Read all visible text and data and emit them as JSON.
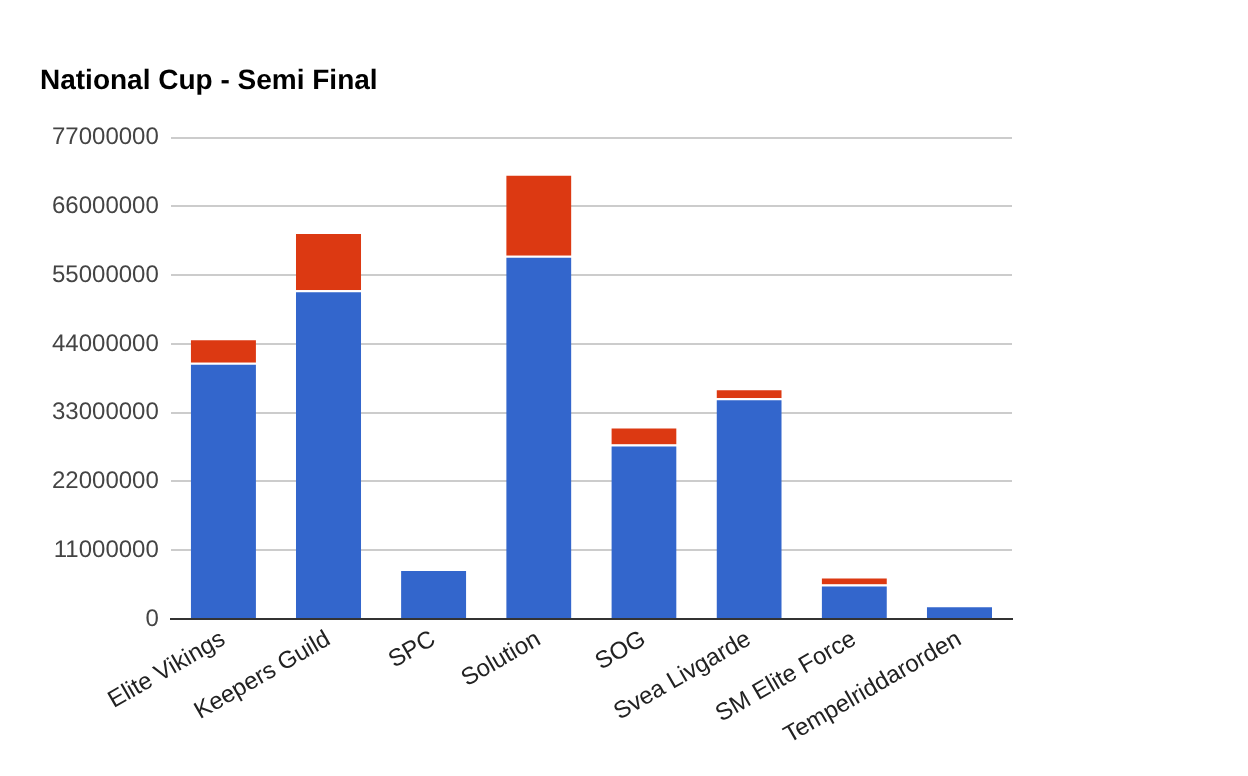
{
  "chart_data": {
    "type": "bar",
    "title": "National Cup - Semi Final",
    "categories": [
      "Elite Vikings",
      "Keepers Guild",
      "SPC",
      "Solution",
      "SOG",
      "Svea Livgarde",
      "SM Elite Force",
      "Tempelriddarorden"
    ],
    "stacked": true,
    "series": [
      {
        "color": "#3366cc",
        "values": [
          41000000,
          52600000,
          8000000,
          58100000,
          27900000,
          35300000,
          5500000,
          2200000
        ]
      },
      {
        "color": "#dc3912",
        "values": [
          3900000,
          9300000,
          null,
          13100000,
          2900000,
          1600000,
          1300000,
          null
        ]
      }
    ],
    "ylim": [
      0,
      77000000
    ],
    "yticks": [
      0,
      11000000,
      22000000,
      33000000,
      44000000,
      55000000,
      66000000,
      77000000
    ],
    "grid": "y",
    "legend": false
  }
}
